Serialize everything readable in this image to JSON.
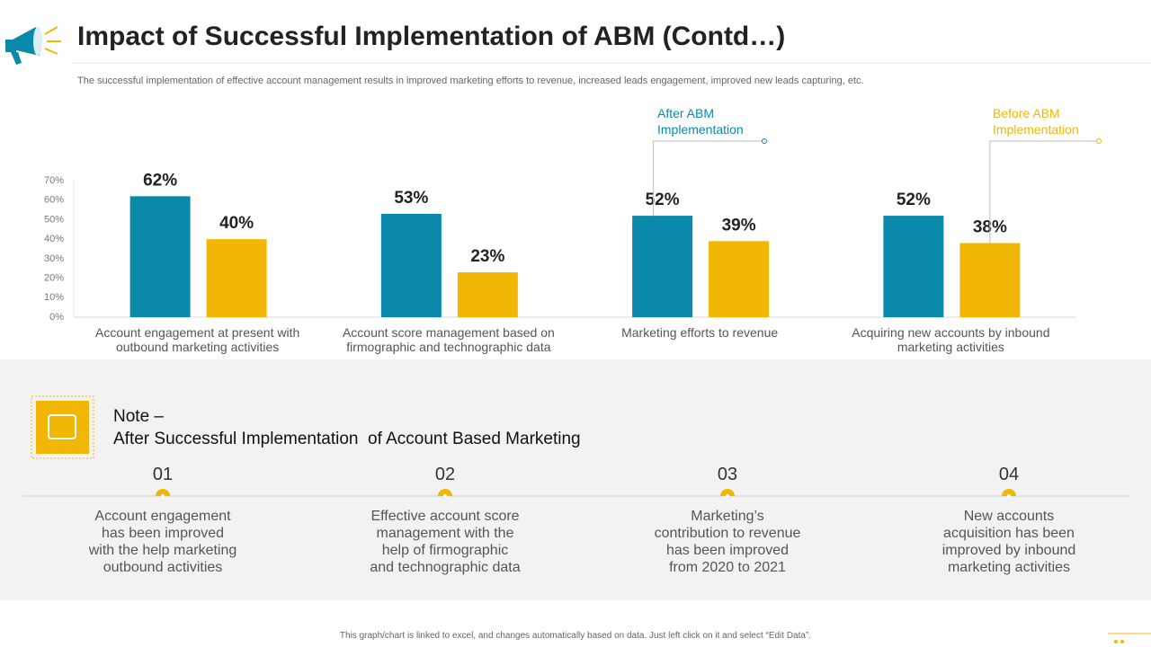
{
  "header": {
    "title": "Impact of Successful Implementation of ABM (Contd…)",
    "subtitle": "The successful implementation of effective account management results in improved marketing efforts to revenue, increased leads engagement, improved new leads capturing, etc."
  },
  "chart_data": {
    "type": "bar",
    "categories": [
      "Account engagement at present with outbound marketing activities",
      "Account score management based on firmographic and technographic data",
      "Marketing efforts to revenue",
      "Acquiring new accounts by inbound marketing activities"
    ],
    "series": [
      {
        "name": "After ABM Implementation",
        "color": "#0b89aa",
        "values": [
          62,
          53,
          52,
          52
        ],
        "value_labels": [
          "62%",
          "53%",
          "52%",
          "52%"
        ]
      },
      {
        "name": "Before ABM Implementation",
        "color": "#f2b705",
        "values": [
          40,
          23,
          39,
          38
        ],
        "value_labels": [
          "40%",
          "23%",
          "39%",
          "38%"
        ]
      }
    ],
    "ylim": [
      0,
      70
    ],
    "yticks": [
      {
        "value": 0,
        "label": "0%"
      },
      {
        "value": 10,
        "label": "10%"
      },
      {
        "value": 20,
        "label": "20%"
      },
      {
        "value": 30,
        "label": "30%"
      },
      {
        "value": 40,
        "label": "40%"
      },
      {
        "value": 50,
        "label": "50%"
      },
      {
        "value": 60,
        "label": "60%"
      },
      {
        "value": 70,
        "label": "70%"
      }
    ],
    "grid": false
  },
  "note": {
    "title": "Note –",
    "text": "After Successful Implementation  of Account Based Marketing"
  },
  "items": [
    {
      "number": "01",
      "lines": [
        "Account engagement",
        "has been improved",
        "with the help marketing",
        "outbound activities"
      ]
    },
    {
      "number": "02",
      "lines": [
        "Effective account score",
        "management with the",
        "help of firmographic",
        "and technographic data"
      ]
    },
    {
      "number": "03",
      "lines": [
        "Marketing’s",
        "contribution to revenue",
        "has been improved",
        "from 2020 to 2021"
      ]
    },
    {
      "number": "04",
      "lines": [
        "New accounts",
        "acquisition has been",
        "improved by inbound",
        "marketing activities"
      ]
    }
  ],
  "footer": "This graph/chart is linked to excel, and changes automatically based on data. Just left click on it and select “Edit Data”."
}
